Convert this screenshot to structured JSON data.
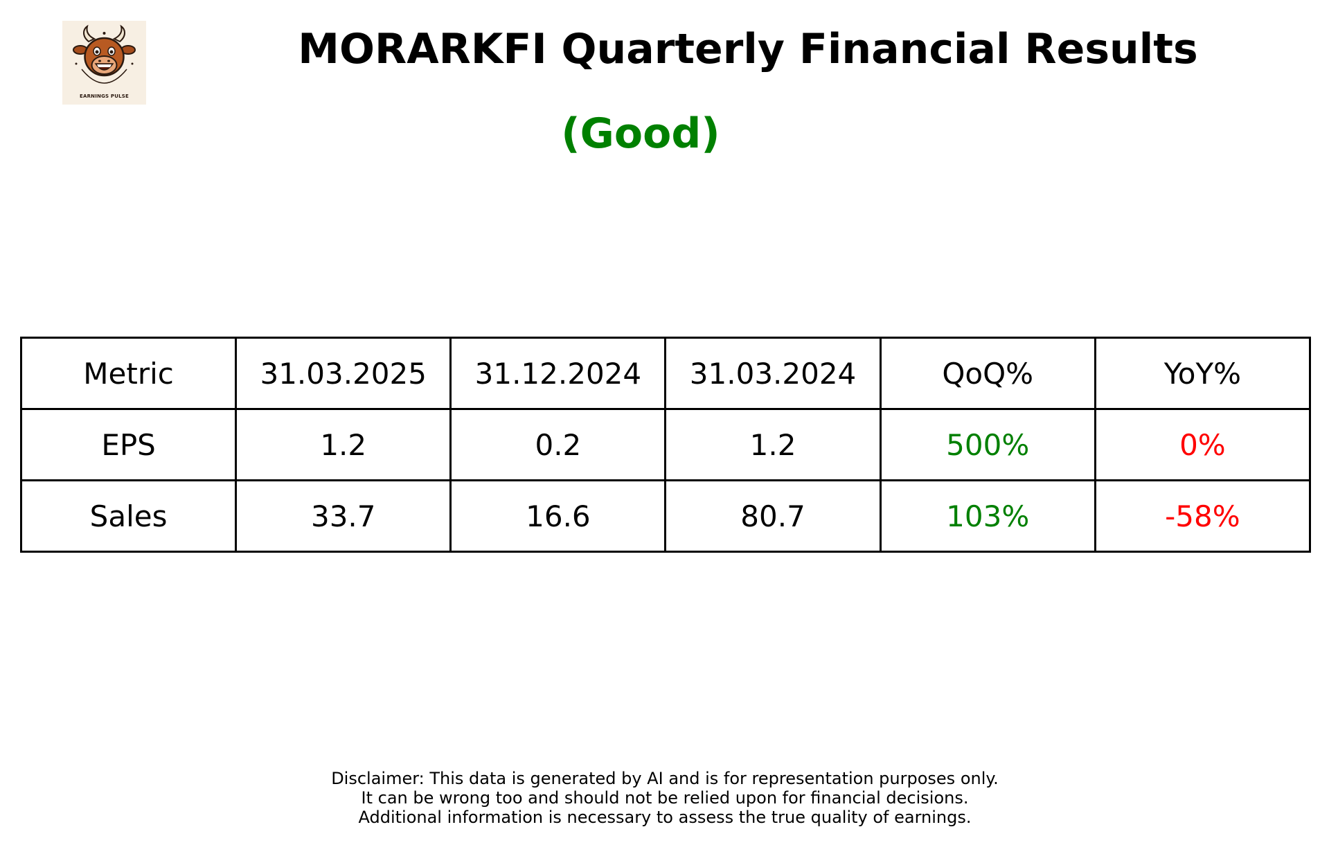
{
  "logo": {
    "icon": "bull-mascot-icon",
    "text": "EARNINGS PULSE",
    "background": "#f7efe3"
  },
  "title": "MORARKFI Quarterly Financial Results",
  "subtitle": "(Good)",
  "colors": {
    "good": "#008000",
    "bad": "#ff0000",
    "neutral": "#000000"
  },
  "chart_data": {
    "type": "table",
    "title": "MORARKFI Quarterly Financial Results",
    "subtitle": "(Good)",
    "columns": [
      "Metric",
      "31.03.2025",
      "31.12.2024",
      "31.03.2024",
      "QoQ%",
      "YoY%"
    ],
    "rows": [
      {
        "cells": [
          "EPS",
          "1.2",
          "0.2",
          "1.2",
          "500%",
          "0%"
        ],
        "colors": [
          "#000000",
          "#000000",
          "#000000",
          "#000000",
          "#008000",
          "#ff0000"
        ]
      },
      {
        "cells": [
          "Sales",
          "33.7",
          "16.6",
          "80.7",
          "103%",
          "-58%"
        ],
        "colors": [
          "#000000",
          "#000000",
          "#000000",
          "#000000",
          "#008000",
          "#ff0000"
        ]
      }
    ]
  },
  "disclaimer": {
    "lines": [
      "Disclaimer: This data is generated by AI and is for representation purposes only.",
      "It can be wrong too and should not be relied upon for financial decisions.",
      "Additional information is necessary to assess the true quality of earnings."
    ]
  }
}
